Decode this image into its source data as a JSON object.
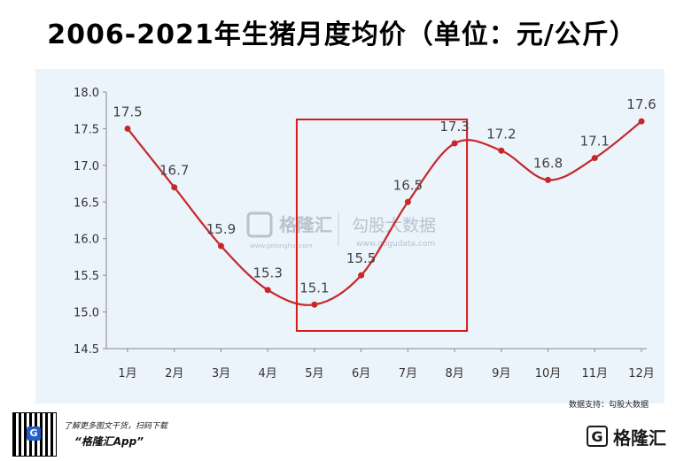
{
  "title": "2006-2021年生猪月度均价（单位：元/公斤）",
  "source": "数据支持：勾股大数据",
  "watermark": {
    "brand": "格隆汇",
    "brand_url": "www.gelonghui.com",
    "partner": "勾股大数据",
    "partner_url": "www.gogudata.com"
  },
  "footer": {
    "promo": "了解更多图文干货，扫码下载",
    "app_name": "“格隆汇App”",
    "logo_text": "格隆汇",
    "logo_icon": "G"
  },
  "colors": {
    "line": "#c62828",
    "highlight_box": "#d81b1b",
    "background": "#ebf3fb"
  },
  "chart_data": {
    "type": "line",
    "title": "2006-2021年生猪月度均价（单位：元/公斤）",
    "xlabel": "",
    "ylabel": "",
    "categories": [
      "1月",
      "2月",
      "3月",
      "4月",
      "5月",
      "6月",
      "7月",
      "8月",
      "9月",
      "10月",
      "11月",
      "12月"
    ],
    "values": [
      17.5,
      16.7,
      15.9,
      15.3,
      15.1,
      15.5,
      16.5,
      17.3,
      17.2,
      16.8,
      17.1,
      17.6
    ],
    "data_labels": [
      "17.5",
      "16.7",
      "15.9",
      "15.3",
      "15.1",
      "15.5",
      "16.5",
      "17.3",
      "17.2",
      "16.8",
      "17.1",
      "17.6"
    ],
    "ylim": [
      14.5,
      18.0
    ],
    "yticks": [
      "14.5",
      "15.0",
      "15.5",
      "16.0",
      "16.5",
      "17.0",
      "17.5",
      "18.0"
    ],
    "grid": false,
    "legend": "none",
    "highlight_range": [
      "5月",
      "8月"
    ]
  }
}
